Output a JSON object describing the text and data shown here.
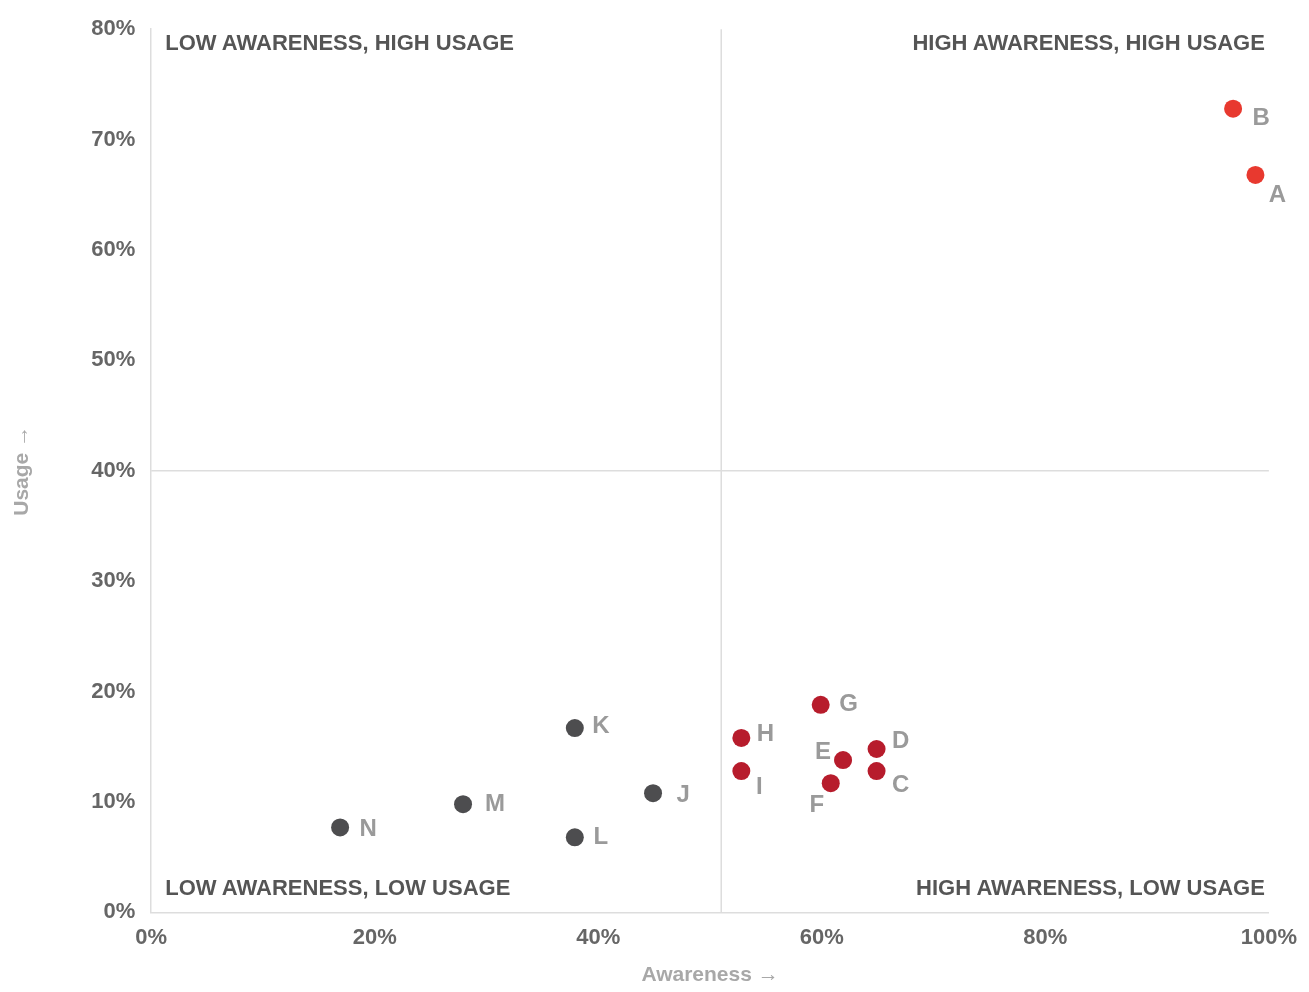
{
  "chart_data": {
    "type": "scatter",
    "xlabel": "Awareness →",
    "ylabel": "Usage →",
    "xlim": [
      0,
      100
    ],
    "ylim": [
      0,
      80
    ],
    "xticks": [
      {
        "value": 0,
        "label": "0%"
      },
      {
        "value": 20,
        "label": "20%"
      },
      {
        "value": 40,
        "label": "40%"
      },
      {
        "value": 60,
        "label": "60%"
      },
      {
        "value": 80,
        "label": "80%"
      },
      {
        "value": 100,
        "label": "100%"
      }
    ],
    "yticks": [
      {
        "value": 0,
        "label": "0%"
      },
      {
        "value": 10,
        "label": "10%"
      },
      {
        "value": 20,
        "label": "20%"
      },
      {
        "value": 30,
        "label": "30%"
      },
      {
        "value": 40,
        "label": "40%"
      },
      {
        "value": 50,
        "label": "50%"
      },
      {
        "value": 60,
        "label": "60%"
      },
      {
        "value": 70,
        "label": "70%"
      },
      {
        "value": 80,
        "label": "80%"
      }
    ],
    "grid": false,
    "legend": false,
    "marker": "circle",
    "ref_lines": [
      {
        "axis": "x",
        "value": 51,
        "color": "#dddddd"
      },
      {
        "axis": "y",
        "value": 40,
        "color": "#dddddd"
      }
    ],
    "series": [
      {
        "color": "#e8392f",
        "x": [
          98.8,
          96.8
        ],
        "values": [
          66.8,
          72.8
        ]
      },
      {
        "color": "#b71c2c",
        "x": [
          64.9,
          64.9,
          61.9,
          60.8,
          59.9,
          52.8,
          52.8
        ],
        "values": [
          12.8,
          14.8,
          13.8,
          11.7,
          18.8,
          15.8,
          12.8
        ]
      },
      {
        "color": "#4d4d4f",
        "x": [
          44.9,
          37.9,
          37.9,
          27.9,
          16.9
        ],
        "values": [
          10.8,
          16.7,
          6.8,
          9.8,
          7.7
        ]
      }
    ],
    "annotations": [
      "LOW AWARENESS, HIGH USAGE",
      "HIGH AWARENESS, HIGH USAGE",
      "LOW AWARENESS, LOW USAGE",
      "HIGH AWARENESS, LOW USAGE",
      {
        "text": "A",
        "x": 98.8,
        "y": 66.8
      },
      {
        "text": "B",
        "x": 96.8,
        "y": 72.8
      },
      {
        "text": "C",
        "x": 64.9,
        "y": 12.8
      },
      {
        "text": "D",
        "x": 64.9,
        "y": 14.8
      },
      {
        "text": "E",
        "x": 61.9,
        "y": 13.8
      },
      {
        "text": "F",
        "x": 60.8,
        "y": 11.7
      },
      {
        "text": "G",
        "x": 59.9,
        "y": 18.8
      },
      {
        "text": "H",
        "x": 52.8,
        "y": 15.8
      },
      {
        "text": "I",
        "x": 52.8,
        "y": 12.8
      },
      {
        "text": "J",
        "x": 44.9,
        "y": 10.8
      },
      {
        "text": "K",
        "x": 37.9,
        "y": 16.7
      },
      {
        "text": "L",
        "x": 37.9,
        "y": 6.8
      },
      {
        "text": "M",
        "x": 27.9,
        "y": 9.8
      },
      {
        "text": "N",
        "x": 16.9,
        "y": 7.7
      }
    ]
  }
}
